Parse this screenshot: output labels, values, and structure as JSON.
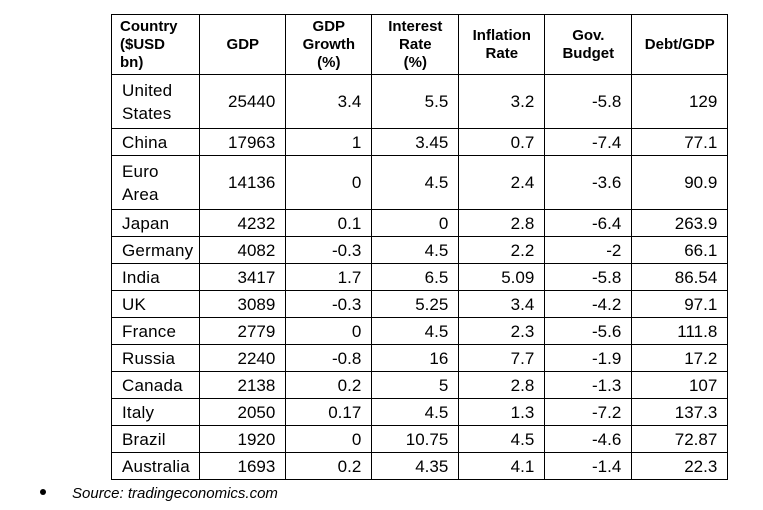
{
  "table": {
    "headers": [
      [
        "Country",
        "($USD",
        "bn)"
      ],
      [
        "GDP"
      ],
      [
        "GDP",
        "Growth",
        "(%)"
      ],
      [
        "Interest",
        "Rate",
        "(%)"
      ],
      [
        "Inflation",
        "Rate"
      ],
      [
        "Gov.",
        "Budget"
      ],
      [
        "Debt/GDP"
      ]
    ],
    "rows": [
      {
        "country": [
          "United",
          "States"
        ],
        "values": [
          "25440",
          "3.4",
          "5.5",
          "3.2",
          "-5.8",
          "129"
        ]
      },
      {
        "country": [
          "China"
        ],
        "values": [
          "17963",
          "1",
          "3.45",
          "0.7",
          "-7.4",
          "77.1"
        ]
      },
      {
        "country": [
          "Euro",
          "Area"
        ],
        "values": [
          "14136",
          "0",
          "4.5",
          "2.4",
          "-3.6",
          "90.9"
        ]
      },
      {
        "country": [
          "Japan"
        ],
        "values": [
          "4232",
          "0.1",
          "0",
          "2.8",
          "-6.4",
          "263.9"
        ]
      },
      {
        "country": [
          "Germany"
        ],
        "values": [
          "4082",
          "-0.3",
          "4.5",
          "2.2",
          "-2",
          "66.1"
        ]
      },
      {
        "country": [
          "India"
        ],
        "values": [
          "3417",
          "1.7",
          "6.5",
          "5.09",
          "-5.8",
          "86.54"
        ]
      },
      {
        "country": [
          "UK"
        ],
        "values": [
          "3089",
          "-0.3",
          "5.25",
          "3.4",
          "-4.2",
          "97.1"
        ]
      },
      {
        "country": [
          "France"
        ],
        "values": [
          "2779",
          "0",
          "4.5",
          "2.3",
          "-5.6",
          "111.8"
        ]
      },
      {
        "country": [
          "Russia"
        ],
        "values": [
          "2240",
          "-0.8",
          "16",
          "7.7",
          "-1.9",
          "17.2"
        ]
      },
      {
        "country": [
          "Canada"
        ],
        "values": [
          "2138",
          "0.2",
          "5",
          "2.8",
          "-1.3",
          "107"
        ]
      },
      {
        "country": [
          "Italy"
        ],
        "values": [
          "2050",
          "0.17",
          "4.5",
          "1.3",
          "-7.2",
          "137.3"
        ]
      },
      {
        "country": [
          "Brazil"
        ],
        "values": [
          "1920",
          "0",
          "10.75",
          "4.5",
          "-4.6",
          "72.87"
        ]
      },
      {
        "country": [
          "Australia"
        ],
        "values": [
          "1693",
          "0.2",
          "4.35",
          "4.1",
          "-1.4",
          "22.3"
        ]
      }
    ]
  },
  "source": {
    "text": "Source: tradingeconomics.com"
  }
}
